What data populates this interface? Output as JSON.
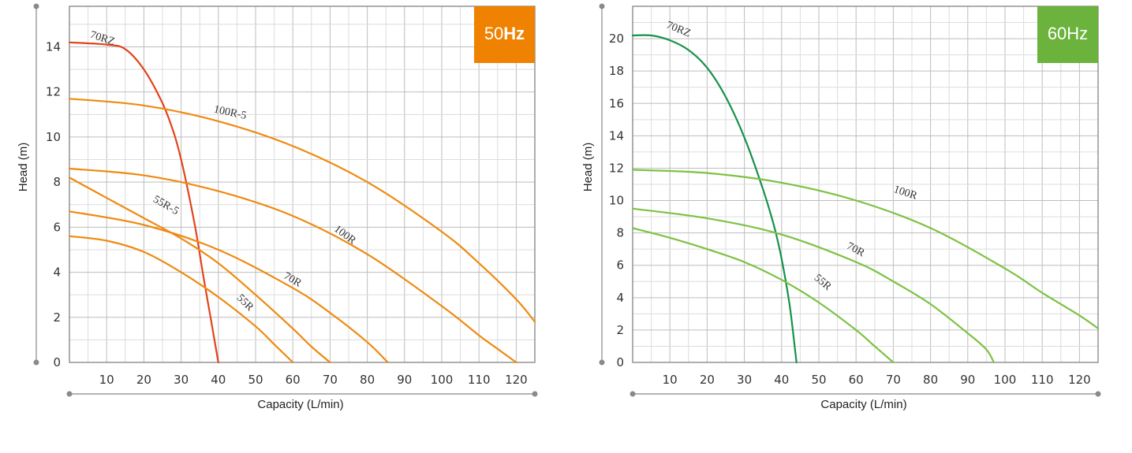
{
  "chart_data": [
    {
      "type": "line",
      "badge": {
        "prefix": "50",
        "suffix": "Hz",
        "color": "#ef8200"
      },
      "xlabel": "Capacity (L/min)",
      "ylabel": "Head (m)",
      "xlim": [
        0,
        125
      ],
      "ylim": [
        0,
        15.8
      ],
      "xticks": [
        10,
        20,
        30,
        40,
        50,
        60,
        70,
        80,
        90,
        100,
        110,
        120
      ],
      "yticks": [
        0,
        2,
        4,
        6,
        8,
        10,
        12,
        14
      ],
      "grid": true,
      "series": [
        {
          "name": "70RZ",
          "color": "#e2441c",
          "x": [
            0,
            10,
            15,
            20,
            25,
            28,
            30,
            32,
            34,
            36,
            38,
            40
          ],
          "y": [
            14.2,
            14.1,
            13.9,
            13.0,
            11.5,
            10.2,
            9.0,
            7.5,
            5.8,
            3.8,
            1.9,
            0
          ]
        },
        {
          "name": "100R-5",
          "color": "#ef8a10",
          "x": [
            0,
            20,
            40,
            60,
            80,
            100,
            110,
            120,
            125
          ],
          "y": [
            11.7,
            11.4,
            10.7,
            9.6,
            8.0,
            5.8,
            4.4,
            2.8,
            1.8
          ]
        },
        {
          "name": "100R",
          "color": "#ef8a10",
          "x": [
            0,
            20,
            40,
            60,
            80,
            100,
            110,
            115,
            120
          ],
          "y": [
            8.6,
            8.3,
            7.6,
            6.5,
            4.8,
            2.5,
            1.2,
            0.6,
            0
          ]
        },
        {
          "name": "70R",
          "color": "#ef8a10",
          "x": [
            0,
            20,
            40,
            60,
            70,
            80,
            85.5
          ],
          "y": [
            6.7,
            6.1,
            5.0,
            3.3,
            2.2,
            0.9,
            0
          ]
        },
        {
          "name": "55R-5",
          "color": "#ef8a10",
          "x": [
            0,
            10,
            20,
            30,
            40,
            50,
            60,
            65,
            70
          ],
          "y": [
            8.2,
            7.3,
            6.4,
            5.5,
            4.4,
            3.0,
            1.5,
            0.7,
            0
          ]
        },
        {
          "name": "55R",
          "color": "#ef8a10",
          "x": [
            0,
            10,
            20,
            30,
            40,
            50,
            55,
            60
          ],
          "y": [
            5.6,
            5.4,
            4.9,
            4.0,
            2.9,
            1.6,
            0.8,
            0
          ]
        }
      ]
    },
    {
      "type": "line",
      "badge": {
        "prefix": "60",
        "suffix": "Hz",
        "color": "#6cb33e"
      },
      "xlabel": "Capacity (L/min)",
      "ylabel": "Head (m)",
      "xlim": [
        0,
        125
      ],
      "ylim": [
        0,
        22
      ],
      "xticks": [
        10,
        20,
        30,
        40,
        50,
        60,
        70,
        80,
        90,
        100,
        110,
        120
      ],
      "yticks": [
        0,
        2,
        4,
        6,
        8,
        10,
        12,
        14,
        16,
        18,
        20
      ],
      "grid": true,
      "series": [
        {
          "name": "70RZ",
          "color": "#16924a",
          "x": [
            0,
            5,
            10,
            15,
            20,
            25,
            30,
            35,
            38,
            40,
            42,
            43,
            44
          ],
          "y": [
            20.2,
            20.2,
            19.9,
            19.3,
            18.2,
            16.4,
            13.9,
            10.7,
            8.4,
            6.4,
            3.8,
            2.0,
            0
          ]
        },
        {
          "name": "100R",
          "color": "#7cc243",
          "x": [
            0,
            20,
            40,
            60,
            80,
            100,
            110,
            120,
            125
          ],
          "y": [
            11.9,
            11.7,
            11.1,
            10.0,
            8.3,
            5.8,
            4.3,
            2.9,
            2.1
          ]
        },
        {
          "name": "70R",
          "color": "#7cc243",
          "x": [
            0,
            20,
            40,
            60,
            70,
            80,
            90,
            95,
            97
          ],
          "y": [
            9.5,
            8.9,
            7.9,
            6.2,
            5.0,
            3.6,
            1.8,
            0.8,
            0
          ]
        },
        {
          "name": "55R",
          "color": "#7cc243",
          "x": [
            0,
            10,
            20,
            30,
            40,
            50,
            60,
            65,
            70
          ],
          "y": [
            8.3,
            7.7,
            7.0,
            6.2,
            5.1,
            3.7,
            2.0,
            1.0,
            0
          ]
        }
      ]
    }
  ]
}
